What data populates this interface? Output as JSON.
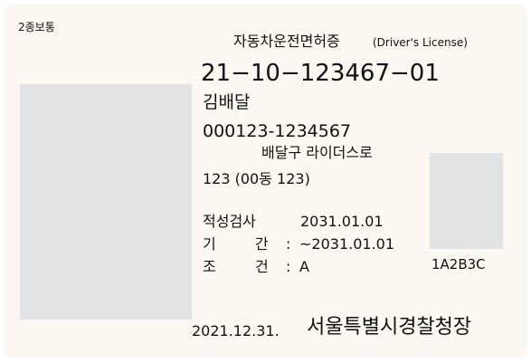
{
  "license": {
    "license_class": "2종보통",
    "title": "자동차운전면허증",
    "title_en": "(Driver's License)",
    "number": "21−10−123467−01",
    "name": "김배달",
    "resident_number": "000123-1234567",
    "address_line1": "배달구 라이더스로",
    "address_line2": "123 (00동 123)",
    "aptitude_test_label": "적성검사",
    "aptitude_test_date": "2031.01.01",
    "period_label_1": "기",
    "period_label_2": "간",
    "period_colon": ":",
    "period_value": "~2031.01.01",
    "condition_label_1": "조",
    "condition_label_2": "건",
    "condition_colon": ":",
    "condition_value": "A",
    "serial_code": "1A2B3C",
    "issue_date": "2021.12.31.",
    "issuer": "서울특별시경찰청장"
  }
}
